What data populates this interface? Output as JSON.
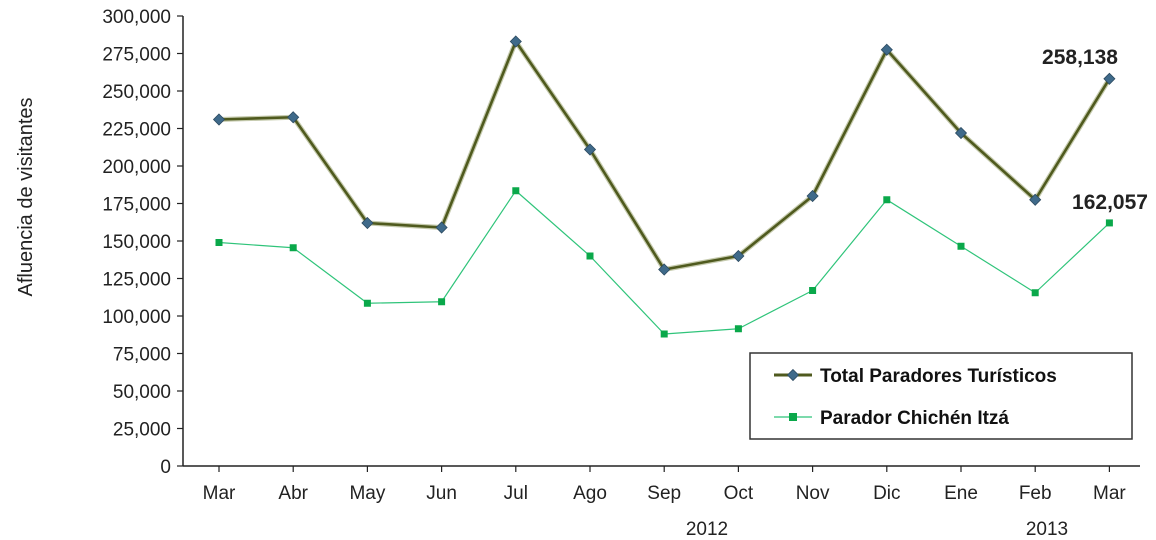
{
  "chart_data": {
    "type": "line",
    "ylabel": "Afluencia de visitantes",
    "ylim": [
      0,
      300000
    ],
    "yticks": [
      "0",
      "25,000",
      "50,000",
      "75,000",
      "100,000",
      "125,000",
      "150,000",
      "175,000",
      "200,000",
      "225,000",
      "250,000",
      "275,000",
      "300,000"
    ],
    "categories": [
      "Mar",
      "Abr",
      "May",
      "Jun",
      "Jul",
      "Ago",
      "Sep",
      "Oct",
      "Nov",
      "Dic",
      "Ene",
      "Feb",
      "Mar"
    ],
    "year_labels": [
      "2012",
      "2013"
    ],
    "grid": false,
    "legend_position": "bottom-right",
    "series": [
      {
        "name": "Total Paradores Turísticos",
        "color": "#4f5a1e",
        "marker": "diamond",
        "marker_color": "#3f6a8a",
        "values": [
          231000,
          232500,
          162000,
          159000,
          283000,
          211000,
          131000,
          140000,
          180000,
          277500,
          222000,
          177500,
          258138
        ]
      },
      {
        "name": "Parador Chichén Itzá",
        "color": "#2fc47a",
        "marker": "square",
        "marker_color": "#0aa84a",
        "values": [
          149000,
          145500,
          108500,
          109500,
          183500,
          140000,
          88000,
          91500,
          117000,
          177500,
          146500,
          115500,
          162057
        ]
      }
    ],
    "annotations": [
      "258,138",
      "162,057"
    ]
  }
}
